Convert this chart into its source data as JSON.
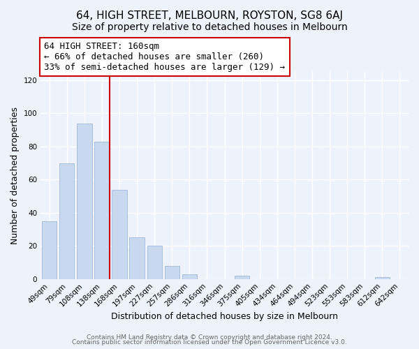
{
  "title": "64, HIGH STREET, MELBOURN, ROYSTON, SG8 6AJ",
  "subtitle": "Size of property relative to detached houses in Melbourn",
  "xlabel": "Distribution of detached houses by size in Melbourn",
  "ylabel": "Number of detached properties",
  "bar_labels": [
    "49sqm",
    "79sqm",
    "108sqm",
    "138sqm",
    "168sqm",
    "197sqm",
    "227sqm",
    "257sqm",
    "286sqm",
    "316sqm",
    "346sqm",
    "375sqm",
    "405sqm",
    "434sqm",
    "464sqm",
    "494sqm",
    "523sqm",
    "553sqm",
    "583sqm",
    "612sqm",
    "642sqm"
  ],
  "bar_values": [
    35,
    70,
    94,
    83,
    54,
    25,
    20,
    8,
    3,
    0,
    0,
    2,
    0,
    0,
    0,
    0,
    0,
    0,
    0,
    1,
    0
  ],
  "bar_face_color": "#c8d8ee",
  "bar_edge_color": "#a0b8d8",
  "highlight_line_color": "#cc0000",
  "annotation_line1": "64 HIGH STREET: 160sqm",
  "annotation_line2": "← 66% of detached houses are smaller (260)",
  "annotation_line3": "33% of semi-detached houses are larger (129) →",
  "annotation_box_facecolor": "#ffffff",
  "annotation_box_edgecolor": "#cc0000",
  "footer_line1": "Contains HM Land Registry data © Crown copyright and database right 2024.",
  "footer_line2": "Contains public sector information licensed under the Open Government Licence v3.0.",
  "ylim": [
    0,
    125
  ],
  "yticks": [
    0,
    20,
    40,
    60,
    80,
    100,
    120
  ],
  "title_fontsize": 11,
  "subtitle_fontsize": 10,
  "axis_label_fontsize": 9,
  "tick_fontsize": 7.5,
  "annotation_fontsize": 9,
  "footer_fontsize": 6.5,
  "background_color": "#eef2fa",
  "plot_background_color": "#eef2fa",
  "grid_color": "#ffffff",
  "red_line_bar_index": 3
}
